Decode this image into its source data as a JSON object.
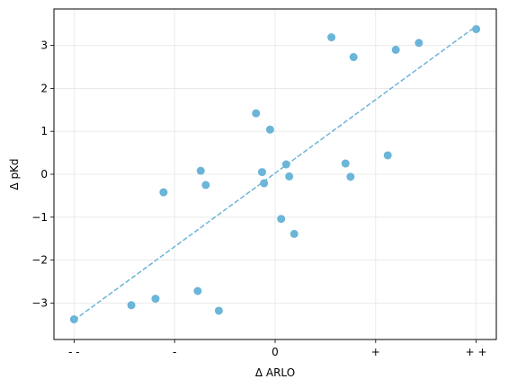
{
  "chart_data": {
    "type": "scatter",
    "xlabel": "Δ ARLO",
    "ylabel": "Δ pKd",
    "xlim": [
      -2.2,
      2.2
    ],
    "ylim": [
      -3.85,
      3.85
    ],
    "x_ticks": [
      {
        "value": -2,
        "label": "- -"
      },
      {
        "value": -1,
        "label": "-"
      },
      {
        "value": 0,
        "label": "0"
      },
      {
        "value": 1,
        "label": "+"
      },
      {
        "value": 2,
        "label": "+ +"
      }
    ],
    "y_ticks": [
      -3,
      -2,
      -1,
      0,
      1,
      2,
      3
    ],
    "grid": true,
    "points": [
      {
        "x": -2.0,
        "y": -3.38
      },
      {
        "x": -1.43,
        "y": -3.05
      },
      {
        "x": -1.19,
        "y": -2.9
      },
      {
        "x": -1.11,
        "y": -0.42
      },
      {
        "x": -0.77,
        "y": -2.72
      },
      {
        "x": -0.74,
        "y": 0.08
      },
      {
        "x": -0.69,
        "y": -0.25
      },
      {
        "x": -0.56,
        "y": -3.18
      },
      {
        "x": -0.19,
        "y": 1.42
      },
      {
        "x": -0.13,
        "y": 0.05
      },
      {
        "x": -0.11,
        "y": -0.21
      },
      {
        "x": -0.05,
        "y": 1.04
      },
      {
        "x": 0.06,
        "y": -1.04
      },
      {
        "x": 0.11,
        "y": 0.23
      },
      {
        "x": 0.14,
        "y": -0.05
      },
      {
        "x": 0.19,
        "y": -1.39
      },
      {
        "x": 0.56,
        "y": 3.19
      },
      {
        "x": 0.7,
        "y": 0.25
      },
      {
        "x": 0.75,
        "y": -0.06
      },
      {
        "x": 0.78,
        "y": 2.73
      },
      {
        "x": 1.12,
        "y": 0.44
      },
      {
        "x": 1.2,
        "y": 2.9
      },
      {
        "x": 1.43,
        "y": 3.06
      },
      {
        "x": 2.0,
        "y": 3.38
      }
    ],
    "fit_line": {
      "x": [
        -2.0,
        2.0
      ],
      "y": [
        -3.4,
        3.45
      ],
      "style": "dashed"
    },
    "colors": {
      "points": "#6bb5d8",
      "line": "#6bb5d8",
      "grid": "#e6e6e6",
      "axes": "#000000"
    }
  }
}
